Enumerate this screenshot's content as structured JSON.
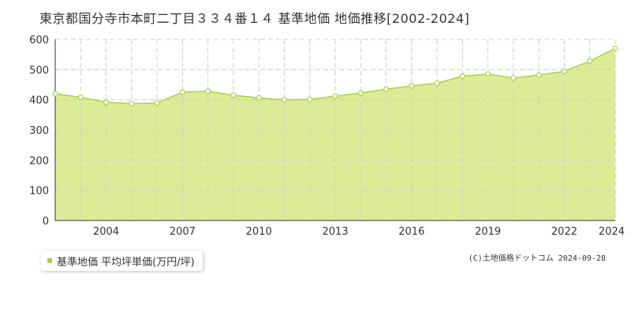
{
  "title": "東京都国分寺市本町二丁目３３４番１４ 基準地価 地価推移[2002-2024]",
  "legend": {
    "label": "基準地価 平均坪単価(万円/坪)"
  },
  "copyright": "(C)土地価格ドットコム 2024-09-28",
  "colors": {
    "area": "#dcec96",
    "line": "#a8d440",
    "grid": "#cccccc",
    "marker_fill": "#ffffff",
    "background": "#ffffff"
  },
  "chart_data": {
    "type": "area",
    "title": "",
    "xlabel": "",
    "ylabel": "",
    "ylim": [
      0,
      600
    ],
    "yticks": [
      0,
      100,
      200,
      300,
      400,
      500,
      600
    ],
    "xlim": [
      2002,
      2024
    ],
    "xticks": [
      2004,
      2007,
      2010,
      2013,
      2016,
      2019,
      2022,
      2024
    ],
    "grid": true,
    "legend_position": "bottom-left",
    "series": [
      {
        "name": "基準地価 平均坪単価(万円/坪)",
        "x": [
          2002,
          2003,
          2004,
          2005,
          2006,
          2007,
          2008,
          2009,
          2010,
          2011,
          2012,
          2013,
          2014,
          2015,
          2016,
          2017,
          2018,
          2019,
          2020,
          2021,
          2022,
          2023,
          2024
        ],
        "values": [
          420,
          408,
          392,
          387,
          389,
          425,
          428,
          415,
          406,
          400,
          401,
          412,
          422,
          435,
          446,
          455,
          478,
          485,
          472,
          482,
          494,
          528,
          570
        ]
      }
    ]
  }
}
